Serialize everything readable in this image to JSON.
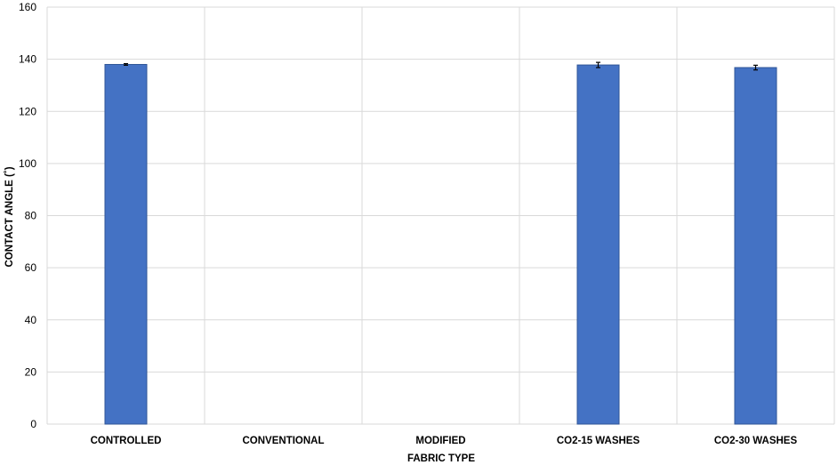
{
  "chart_data": {
    "type": "bar",
    "categories": [
      "CONTROLLED",
      "CONVENTIONAL",
      "MODIFIED",
      "CO2-15 WASHES",
      "CO2-30 WASHES"
    ],
    "values": [
      138,
      0,
      0,
      137.8,
      136.8
    ],
    "errors": [
      0.3,
      0,
      0,
      1.0,
      0.9
    ],
    "xlabel": "FABRIC TYPE",
    "ylabel": "CONTACT ANGLE (˚)",
    "ylim": [
      0,
      160
    ],
    "yticks": [
      0,
      20,
      40,
      60,
      80,
      100,
      120,
      140,
      160
    ],
    "grid": true,
    "bar_color": "#4472C4",
    "bar_edge_color": "#2F5597",
    "grid_color": "#D9D9D9"
  }
}
